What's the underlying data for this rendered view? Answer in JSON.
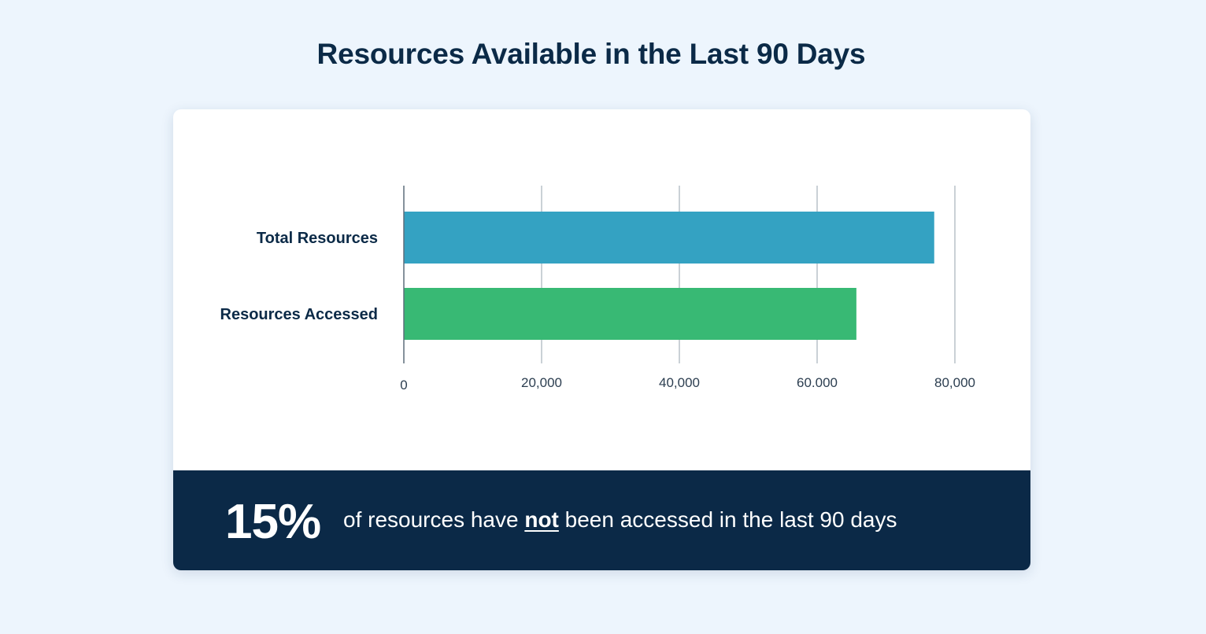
{
  "title": "Resources Available in the Last 90 Days",
  "chart_data": {
    "type": "bar",
    "orientation": "horizontal",
    "title": "Resources Available in the Last 90 Days",
    "categories": [
      "Total Resources",
      "Resources Accessed"
    ],
    "values": [
      77000,
      65700
    ],
    "colors": [
      "#34a2c2",
      "#38b974"
    ],
    "xlim": [
      0,
      80000
    ],
    "x_ticks": [
      0,
      20000,
      40000,
      60000,
      80000
    ],
    "x_tick_labels": [
      "0",
      "20,000",
      "40,000",
      "60.000",
      "80,000"
    ],
    "grid": true,
    "xlabel": "",
    "ylabel": ""
  },
  "footer": {
    "stat": "15%",
    "text_before": "of resources have ",
    "text_emphasis": "not",
    "text_after": " been accessed in the last 90 days"
  }
}
